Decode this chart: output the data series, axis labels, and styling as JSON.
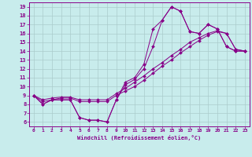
{
  "xlabel": "Windchill (Refroidissement éolien,°C)",
  "xlim": [
    -0.5,
    23.5
  ],
  "ylim": [
    5.5,
    19.5
  ],
  "yticks": [
    6,
    7,
    8,
    9,
    10,
    11,
    12,
    13,
    14,
    15,
    16,
    17,
    18,
    19
  ],
  "xticks": [
    0,
    1,
    2,
    3,
    4,
    5,
    6,
    7,
    8,
    9,
    10,
    11,
    12,
    13,
    14,
    15,
    16,
    17,
    18,
    19,
    20,
    21,
    22,
    23
  ],
  "bg_color": "#c8ecec",
  "line_color": "#880088",
  "grid_color": "#aacccc",
  "lines": [
    [
      9.0,
      8.0,
      8.5,
      8.5,
      8.5,
      6.5,
      6.2,
      6.2,
      6.0,
      8.5,
      10.5,
      11.0,
      12.5,
      16.5,
      17.5,
      19.0,
      18.5,
      16.2,
      16.0,
      17.0,
      16.5,
      14.5,
      14.0,
      14.0
    ],
    [
      9.0,
      8.0,
      8.5,
      8.5,
      8.5,
      6.5,
      6.2,
      6.2,
      6.0,
      8.5,
      10.2,
      10.8,
      12.0,
      14.5,
      17.5,
      19.0,
      18.5,
      16.2,
      16.0,
      17.0,
      16.5,
      14.5,
      14.0,
      14.0
    ],
    [
      9.0,
      8.5,
      8.7,
      8.8,
      8.8,
      8.5,
      8.5,
      8.5,
      8.5,
      9.2,
      9.8,
      10.5,
      11.2,
      12.0,
      12.7,
      13.5,
      14.2,
      15.0,
      15.5,
      16.0,
      16.3,
      16.0,
      14.2,
      14.0
    ],
    [
      9.0,
      8.3,
      8.5,
      8.7,
      8.7,
      8.3,
      8.3,
      8.3,
      8.3,
      9.0,
      9.5,
      10.0,
      10.7,
      11.5,
      12.3,
      13.0,
      13.8,
      14.5,
      15.2,
      15.8,
      16.2,
      16.0,
      14.2,
      14.0
    ]
  ]
}
